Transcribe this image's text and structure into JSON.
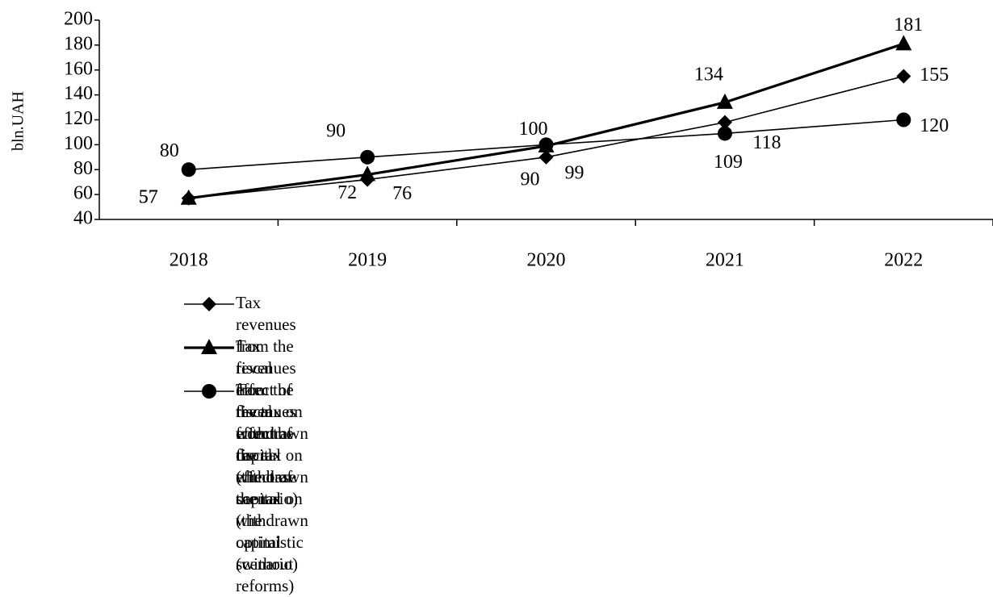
{
  "chart_data": {
    "type": "line",
    "y_label": "bln.UAH",
    "categories": [
      "2018",
      "2019",
      "2020",
      "2021",
      "2022"
    ],
    "series": [
      {
        "name": "Tax revenues from the fiscal effect of the tax on withdrawn capital\n(the base scenario)",
        "color": "#000000",
        "marker": "diamond",
        "values": [
          57,
          72,
          90,
          118,
          155
        ]
      },
      {
        "name": "Tax revenues from the fiscal effect of the tax on withdrawn capital\n(the optimistic scenario)",
        "color": "#000000",
        "marker": "triangle",
        "values": [
          57,
          76,
          99,
          134,
          181
        ]
      },
      {
        "name": "Tax revenues from the fiscal effect of the tax on withdrawn capital\n(without reforms)",
        "color": "#000000",
        "marker": "circle",
        "values": [
          80,
          90,
          100,
          109,
          120
        ]
      }
    ],
    "ylim": [
      40,
      200
    ],
    "yticks": [
      40,
      60,
      80,
      100,
      120,
      140,
      160,
      180,
      200
    ],
    "grid": false,
    "legend": "bottom"
  }
}
